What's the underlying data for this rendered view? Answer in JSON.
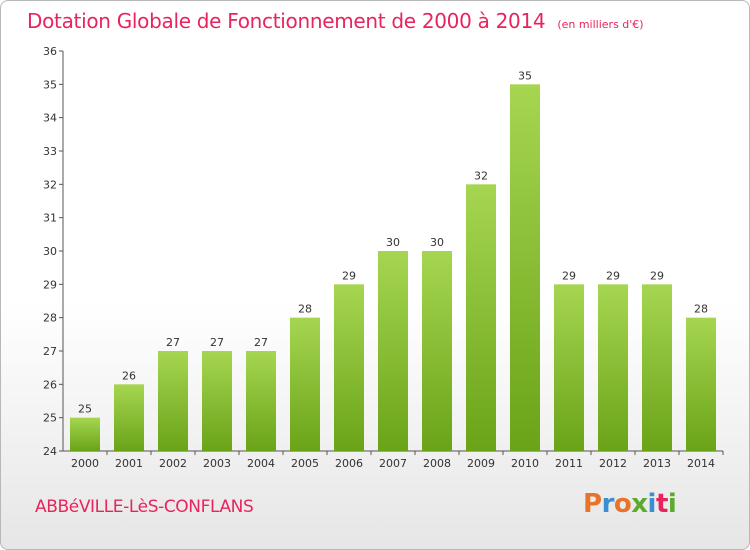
{
  "header": {
    "title": "Dotation Globale de Fonctionnement de 2000 à 2014",
    "unit": "(en milliers d'€)"
  },
  "footer": {
    "commune": "ABBéVILLE-LèS-CONFLANS",
    "logo": "Proxiti"
  },
  "colors": {
    "title": "#e8245c",
    "bar_light": "#a6d651",
    "bar_dark": "#6aa318",
    "logo_letters": [
      "#e8732a",
      "#3b8ed1",
      "#e8732a",
      "#5cab2f",
      "#3b8ed1",
      "#e8245c",
      "#5cab2f"
    ]
  },
  "chart_data": {
    "type": "bar",
    "title": "Dotation Globale de Fonctionnement de 2000 à 2014",
    "unit": "(en milliers d'€)",
    "categories": [
      "2000",
      "2001",
      "2002",
      "2003",
      "2004",
      "2005",
      "2006",
      "2007",
      "2008",
      "2009",
      "2010",
      "2011",
      "2012",
      "2013",
      "2014"
    ],
    "values": [
      25,
      26,
      27,
      27,
      27,
      28,
      29,
      30,
      30,
      32,
      35,
      29,
      29,
      29,
      28
    ],
    "value_labels": [
      "25",
      "26",
      "27",
      "27",
      "27",
      "28",
      "29",
      "30",
      "30",
      "32",
      "35",
      "29",
      "29",
      "29",
      "28"
    ],
    "yticks": [
      "24",
      "25",
      "26",
      "27",
      "28",
      "29",
      "30",
      "31",
      "32",
      "33",
      "34",
      "35",
      "36"
    ],
    "ylim": [
      24,
      36
    ],
    "xlabel": "",
    "ylabel": "",
    "grid": false,
    "legend": "none"
  }
}
